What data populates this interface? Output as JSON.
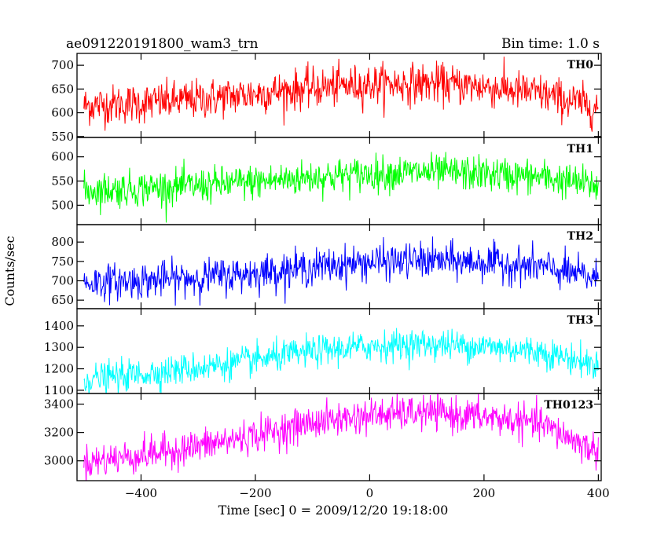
{
  "header": {
    "left_title": "ae091220191800_wam3_trn",
    "right_title": "Bin time: 1.0 s"
  },
  "chart_data": {
    "type": "line",
    "xlabel": "Time [sec] 0 = 2009/12/20 19:18:00",
    "ylabel": "Counts/sec",
    "xlim": [
      -512,
      405
    ],
    "xticks": [
      -400,
      -200,
      0,
      200,
      400
    ],
    "x_start": -500,
    "x_end": 400,
    "bin_seconds": 1,
    "panels": [
      {
        "name": "TH0",
        "color": "#ff0000",
        "ylim": [
          548,
          725
        ],
        "yticks": [
          550,
          600,
          650,
          700
        ],
        "trend_x": [
          -500,
          -400,
          -300,
          -200,
          -100,
          0,
          100,
          200,
          300,
          400
        ],
        "trend_y": [
          615,
          620,
          628,
          640,
          652,
          660,
          662,
          655,
          640,
          610
        ],
        "noise_amplitude": 38
      },
      {
        "name": "TH1",
        "color": "#00ff00",
        "ylim": [
          460,
          640
        ],
        "yticks": [
          500,
          550,
          600
        ],
        "trend_x": [
          -500,
          -400,
          -300,
          -200,
          -100,
          0,
          100,
          200,
          300,
          400
        ],
        "trend_y": [
          530,
          535,
          540,
          548,
          558,
          565,
          568,
          565,
          558,
          540
        ],
        "noise_amplitude": 33
      },
      {
        "name": "TH2",
        "color": "#0000ff",
        "ylim": [
          628,
          845
        ],
        "yticks": [
          650,
          700,
          750,
          800
        ],
        "trend_x": [
          -500,
          -400,
          -300,
          -200,
          -100,
          0,
          100,
          200,
          300,
          400
        ],
        "trend_y": [
          695,
          700,
          708,
          720,
          735,
          748,
          752,
          748,
          735,
          705
        ],
        "noise_amplitude": 42
      },
      {
        "name": "TH3",
        "color": "#00ffff",
        "ylim": [
          1085,
          1480
        ],
        "yticks": [
          1100,
          1200,
          1300,
          1400
        ],
        "trend_x": [
          -500,
          -400,
          -300,
          -200,
          -100,
          0,
          100,
          200,
          300,
          400
        ],
        "trend_y": [
          1150,
          1175,
          1205,
          1240,
          1280,
          1305,
          1315,
          1305,
          1280,
          1215
        ],
        "noise_amplitude": 65
      },
      {
        "name": "TH0123",
        "color": "#ff00ff",
        "ylim": [
          2860,
          3475
        ],
        "yticks": [
          3000,
          3200,
          3400
        ],
        "trend_x": [
          -500,
          -400,
          -300,
          -200,
          -100,
          0,
          100,
          200,
          300,
          400
        ],
        "trend_y": [
          2990,
          3040,
          3100,
          3180,
          3270,
          3320,
          3340,
          3310,
          3260,
          3060
        ],
        "noise_amplitude": 110
      }
    ]
  }
}
